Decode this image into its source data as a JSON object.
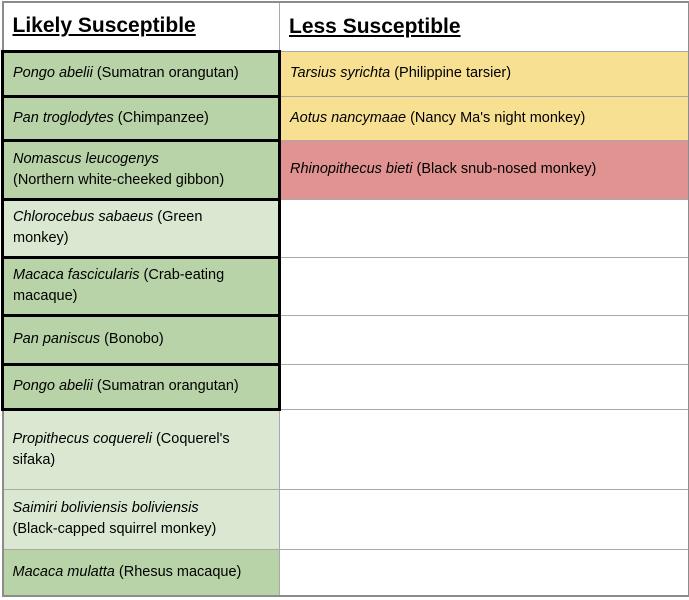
{
  "table": {
    "headers": [
      "Likely Susceptible",
      "Less Susceptible"
    ],
    "rows": [
      {
        "left": {
          "species": "Pongo abelii",
          "common": " (Sumatran orangutan)",
          "tone": "green"
        },
        "right": {
          "species": "Tarsius syrichta",
          "common": " (Philippine tarsier)",
          "tone": "yellow"
        }
      },
      {
        "left": {
          "species": "Pan troglodytes",
          "common": " (Chimpanzee)",
          "tone": "green"
        },
        "right": {
          "species": "Aotus nancymaae",
          "common": " (Nancy Ma's night monkey)",
          "tone": "yellow"
        }
      },
      {
        "left": {
          "species": "Nomascus leucogenys",
          "common": "\n(Northern white-cheeked gibbon)",
          "tone": "green"
        },
        "right": {
          "species": "Rhinopithecus bieti",
          "common": " (Black snub-nosed monkey)",
          "tone": "red"
        }
      },
      {
        "left": {
          "species": "Chlorocebus sabaeus",
          "common": " (Green\nmonkey)",
          "tone": "light-green"
        },
        "right": {
          "species": "",
          "common": "",
          "tone": "white"
        }
      },
      {
        "left": {
          "species": "Macaca fascicularis",
          "common": " (Crab-eating\nmacaque)",
          "tone": "green"
        },
        "right": {
          "species": "",
          "common": "",
          "tone": "white"
        }
      },
      {
        "left": {
          "species": "Pan paniscus",
          "common": " (Bonobo)",
          "tone": "green"
        },
        "right": {
          "species": "",
          "common": "",
          "tone": "white"
        }
      },
      {
        "left": {
          "species": "Pongo abelii",
          "common": " (Sumatran orangutan)",
          "tone": "green"
        },
        "right": {
          "species": "",
          "common": "",
          "tone": "white"
        }
      },
      {
        "left": {
          "species": "Propithecus coquereli",
          "common": " (Coquerel's\nsifaka)",
          "tone": "light-green"
        },
        "right": {
          "species": "",
          "common": "",
          "tone": "white"
        }
      },
      {
        "left": {
          "species": "Saimiri boliviensis boliviensis",
          "common": "\n(Black-capped squirrel monkey)",
          "tone": "light-green"
        },
        "right": {
          "species": "",
          "common": "",
          "tone": "white"
        }
      },
      {
        "left": {
          "species": "Macaca mulatta",
          "common": " (Rhesus macaque)",
          "tone": "green"
        },
        "right": {
          "species": "",
          "common": "",
          "tone": "white"
        }
      }
    ]
  },
  "colors": {
    "green-strong": "#b8d3a7",
    "green-light": "#dae8d2",
    "yellow": "#f8e093",
    "red": "#e09390",
    "border-black": "#000000",
    "border-gray": "#a9a9a9",
    "border-outer": "#8c8c8c"
  }
}
